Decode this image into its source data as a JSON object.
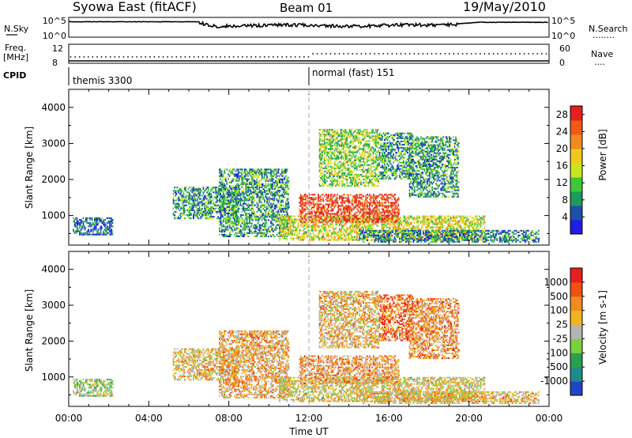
{
  "header": {
    "title": "Syowa East (fitACF)",
    "beam": "Beam 01",
    "date": "19/May/2010"
  },
  "left_labels": {
    "nsky": "N.Sky",
    "freq": "Freq.",
    "mhz": "[MHz]",
    "cpid": "CPID"
  },
  "right_labels": {
    "nsearch": "N.Search",
    "nsearch_dots": "........",
    "nave": "Nave",
    "nave_dots": "...."
  },
  "noise_axis": {
    "top_label": "10^5",
    "bottom_label": "10^0"
  },
  "freq_axis": {
    "left_top": "12",
    "left_bottom": "8",
    "right_top": "60",
    "right_bottom": "0"
  },
  "cpid_labels": {
    "first": "themis 3300",
    "second": "normal (fast) 151"
  },
  "colors": {
    "power_scale": [
      "#1e1ee6",
      "#1e50aa",
      "#1e9a5a",
      "#3cc83c",
      "#c8e61e",
      "#f0c81e",
      "#f08c1e",
      "#f05a14",
      "#e61e1e"
    ],
    "velocity_scale": [
      "#1e46c8",
      "#1e8c8c",
      "#28a050",
      "#78d23c",
      "#b4b4b4",
      "#f0b41e",
      "#f08c1e",
      "#f05014",
      "#e61e1e"
    ],
    "noise_line": "#000000",
    "dashed_line": "#aaaaaa"
  },
  "chart_data": [
    {
      "type": "heatmap",
      "title": "Power",
      "xlabel": "",
      "ylabel": "Slant Range [km]",
      "x_ticks": [
        "00:00",
        "04:00",
        "08:00",
        "12:00",
        "16:00",
        "20:00",
        "00:00"
      ],
      "xlim": [
        0,
        24
      ],
      "y_ticks": [
        "1000",
        "2000",
        "3000",
        "4000"
      ],
      "ylim": [
        180,
        4500
      ],
      "colorbar_label": "Power [dB]",
      "colorbar_ticks": [
        "4",
        "8",
        "12",
        "16",
        "20",
        "24",
        "28"
      ],
      "colorbar_range": [
        0,
        30
      ],
      "echo_regions": [
        {
          "t0": 0.2,
          "t1": 2.2,
          "r0": 450,
          "r1": 950,
          "level": 0.2
        },
        {
          "t0": 5.2,
          "t1": 8.5,
          "r0": 900,
          "r1": 1800,
          "level": 0.3
        },
        {
          "t0": 7.5,
          "t1": 11.0,
          "r0": 400,
          "r1": 2300,
          "level": 0.3
        },
        {
          "t0": 10.5,
          "t1": 20.8,
          "r0": 300,
          "r1": 1000,
          "level": 0.55
        },
        {
          "t0": 11.5,
          "t1": 16.5,
          "r0": 800,
          "r1": 1600,
          "level": 0.9
        },
        {
          "t0": 12.5,
          "t1": 15.5,
          "r0": 1800,
          "r1": 3400,
          "level": 0.45
        },
        {
          "t0": 15.5,
          "t1": 17.2,
          "r0": 2000,
          "r1": 3300,
          "level": 0.3
        },
        {
          "t0": 17.0,
          "t1": 19.5,
          "r0": 1500,
          "r1": 3200,
          "level": 0.3
        },
        {
          "t0": 14.5,
          "t1": 23.5,
          "r0": 250,
          "r1": 600,
          "level": 0.25
        }
      ]
    },
    {
      "type": "heatmap",
      "title": "Velocity",
      "xlabel": "Time UT",
      "ylabel": "Slant Range [km]",
      "x_ticks": [
        "00:00",
        "04:00",
        "08:00",
        "12:00",
        "16:00",
        "20:00",
        "00:00"
      ],
      "xlim": [
        0,
        24
      ],
      "y_ticks": [
        "1000",
        "2000",
        "3000",
        "4000"
      ],
      "ylim": [
        180,
        4500
      ],
      "colorbar_label": "Velocity [m s-1]",
      "colorbar_ticks": [
        "1000",
        "500",
        "100",
        "25",
        "-25",
        "-100",
        "-500",
        "-1000"
      ],
      "colorbar_range": [
        -1000,
        1000
      ],
      "echo_regions": [
        {
          "t0": 0.2,
          "t1": 2.2,
          "r0": 450,
          "r1": 950,
          "level": 0.45
        },
        {
          "t0": 5.2,
          "t1": 8.5,
          "r0": 900,
          "r1": 1800,
          "level": 0.6
        },
        {
          "t0": 7.5,
          "t1": 11.0,
          "r0": 400,
          "r1": 2300,
          "level": 0.65
        },
        {
          "t0": 10.5,
          "t1": 20.8,
          "r0": 300,
          "r1": 1000,
          "level": 0.55
        },
        {
          "t0": 11.5,
          "t1": 16.5,
          "r0": 800,
          "r1": 1600,
          "level": 0.68
        },
        {
          "t0": 12.5,
          "t1": 15.5,
          "r0": 1800,
          "r1": 3400,
          "level": 0.62
        },
        {
          "t0": 15.5,
          "t1": 17.2,
          "r0": 2000,
          "r1": 3300,
          "level": 0.8
        },
        {
          "t0": 17.0,
          "t1": 19.5,
          "r0": 1500,
          "r1": 3200,
          "level": 0.7
        },
        {
          "t0": 14.5,
          "t1": 23.5,
          "r0": 250,
          "r1": 600,
          "level": 0.6
        }
      ]
    }
  ]
}
